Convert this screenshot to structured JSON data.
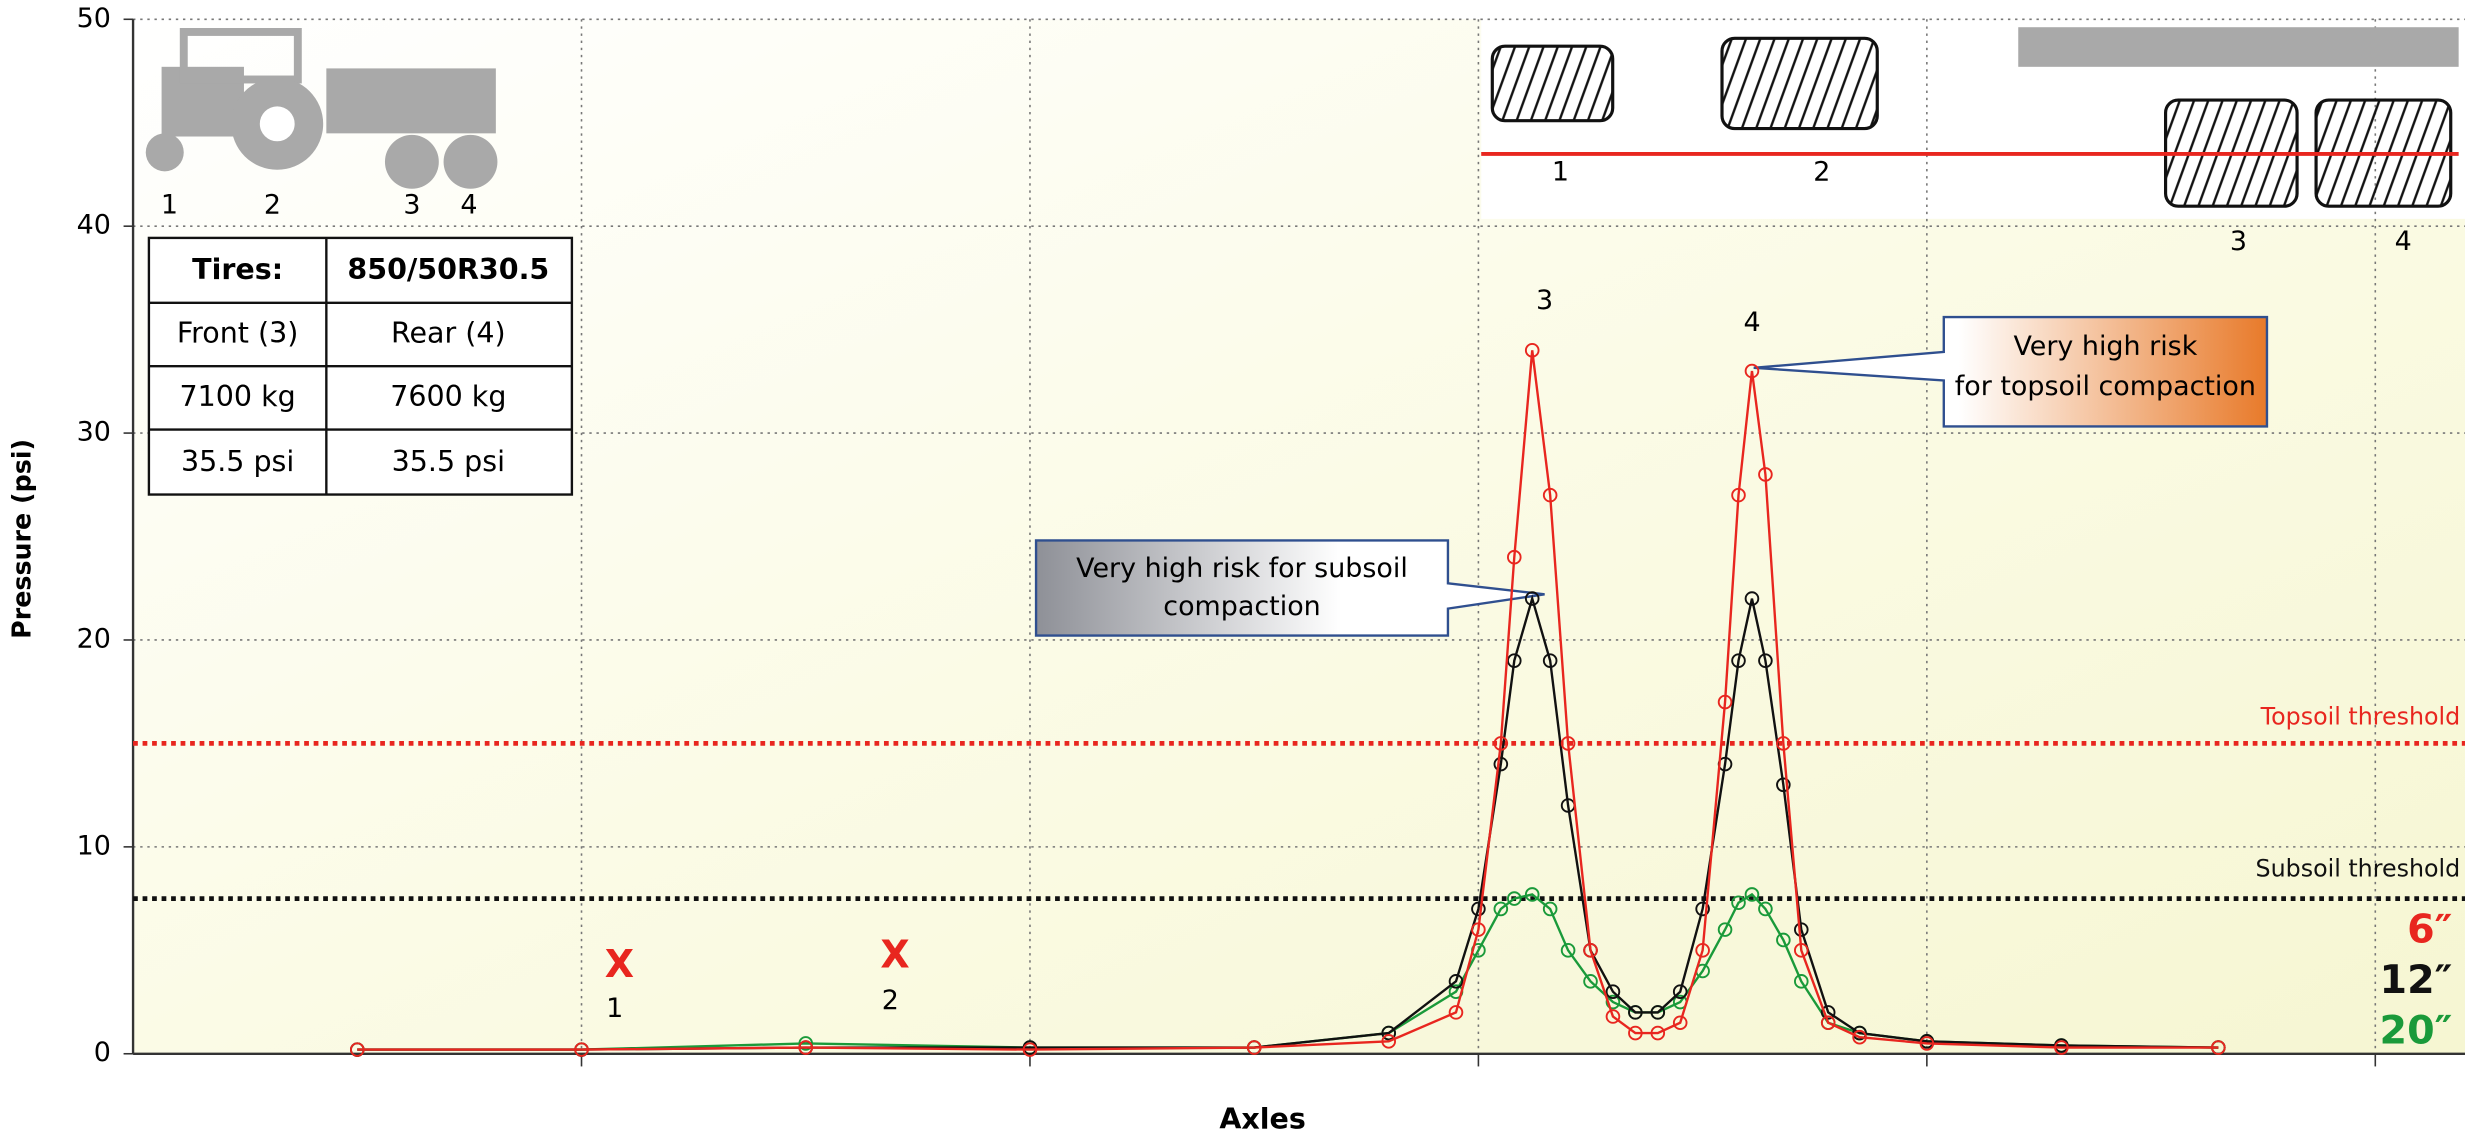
{
  "chart_data": {
    "type": "line",
    "y_label": "Pressure (psi)",
    "x_label": "Axles",
    "xlim": [
      0,
      5.2
    ],
    "xticks": [
      1,
      2,
      3,
      4,
      5
    ],
    "ylim": [
      0,
      50
    ],
    "yticks": [
      0,
      10,
      20,
      30,
      40,
      50
    ],
    "grid": true,
    "x": [
      0.5,
      1.0,
      1.5,
      2.0,
      2.5,
      2.8,
      2.95,
      3.0,
      3.05,
      3.08,
      3.12,
      3.16,
      3.2,
      3.25,
      3.3,
      3.35,
      3.4,
      3.45,
      3.5,
      3.55,
      3.58,
      3.61,
      3.64,
      3.68,
      3.72,
      3.78,
      3.85,
      4.0,
      4.3,
      4.65
    ],
    "series": [
      {
        "name": "6″",
        "color": "#e8261f",
        "values": [
          0.2,
          0.2,
          0.3,
          0.2,
          0.3,
          0.6,
          2,
          6,
          15,
          24,
          34,
          27,
          15,
          5,
          1.8,
          1,
          1,
          1.5,
          5,
          17,
          27,
          33,
          28,
          15,
          5,
          1.5,
          0.8,
          0.5,
          0.3,
          0.3
        ]
      },
      {
        "name": "12″",
        "color": "#111111",
        "values": [
          0.2,
          0.2,
          0.3,
          0.3,
          0.3,
          1,
          3.5,
          7,
          14,
          19,
          22,
          19,
          12,
          5,
          3,
          2,
          2,
          3,
          7,
          14,
          19,
          22,
          19,
          13,
          6,
          2,
          1,
          0.6,
          0.4,
          0.3
        ]
      },
      {
        "name": "20″",
        "color": "#1a9a3a",
        "values": [
          0.2,
          0.2,
          0.5,
          0.3,
          0.3,
          1,
          3,
          5,
          7,
          7.5,
          7.7,
          7,
          5,
          3.5,
          2.5,
          2,
          2,
          2.5,
          4,
          6,
          7.3,
          7.7,
          7,
          5.5,
          3.5,
          1.5,
          1,
          0.6,
          0.4,
          0.3
        ]
      }
    ],
    "thresholds": [
      {
        "label": "Topsoil threshold",
        "value": 15,
        "color": "#e8261f"
      },
      {
        "label": "Subsoil threshold",
        "value": 7.5,
        "color": "#111111"
      }
    ],
    "peak_labels": [
      "3",
      "4"
    ],
    "callouts": [
      "Very high risk for subsoil compaction",
      "Very high risk for topsoil compaction"
    ],
    "axle_markers": [
      {
        "symbol": "X",
        "label": "1"
      },
      {
        "symbol": "X",
        "label": "2"
      }
    ],
    "tractor_labels": [
      "1",
      "2",
      "3",
      "4"
    ],
    "tire_labels": [
      "1",
      "2",
      "3",
      "4"
    ],
    "table": {
      "rows": [
        [
          "Tires:",
          "850/50R30.5"
        ],
        [
          "Front (3)",
          "Rear (4)"
        ],
        [
          "7100 kg",
          "7600 kg"
        ],
        [
          "35.5 psi",
          "35.5 psi"
        ]
      ]
    }
  }
}
